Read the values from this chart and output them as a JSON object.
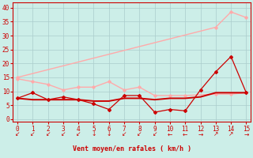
{
  "bg_color": "#cceee8",
  "grid_color": "#aacccc",
  "xlabel": "Vent moyen/en rafales ( km/h )",
  "xlabel_color": "#cc0000",
  "xlim": [
    -0.3,
    15.3
  ],
  "ylim": [
    -1,
    42
  ],
  "yticks": [
    0,
    5,
    10,
    15,
    20,
    25,
    30,
    35,
    40
  ],
  "xticks": [
    0,
    1,
    2,
    3,
    4,
    5,
    6,
    7,
    8,
    9,
    10,
    11,
    12,
    13,
    14,
    15
  ],
  "line_light1": {
    "x": [
      0,
      1,
      2,
      3,
      4,
      5,
      6,
      7,
      8,
      9,
      10,
      11,
      13,
      14,
      15
    ],
    "y": [
      14.5,
      13.5,
      12.5,
      10.5,
      11.5,
      11.5,
      13.5,
      10.5,
      11.5,
      8.5,
      8.5,
      8.5,
      9.0,
      9.0,
      9.5
    ],
    "color": "#ffaaaa",
    "lw": 1.0
  },
  "line_light2": {
    "x": [
      0,
      13,
      14,
      15
    ],
    "y": [
      15.0,
      33.0,
      38.5,
      36.5
    ],
    "color": "#ffaaaa",
    "lw": 1.0
  },
  "line_dark_squiggly": {
    "x": [
      0,
      1,
      2,
      3,
      4,
      5,
      6,
      7,
      8,
      9,
      10,
      11,
      12,
      13,
      14,
      15
    ],
    "y": [
      7.5,
      9.5,
      7.0,
      8.0,
      7.0,
      5.5,
      3.5,
      8.5,
      8.5,
      2.5,
      3.5,
      3.0,
      10.5,
      17.0,
      22.5,
      9.5
    ],
    "color": "#cc0000",
    "lw": 0.9,
    "marker": "D",
    "ms": 2.0
  },
  "line_dark_flat": {
    "x": [
      0,
      1,
      2,
      3,
      4,
      5,
      6,
      7,
      8,
      9,
      10,
      11,
      12,
      13,
      14,
      15
    ],
    "y": [
      7.5,
      7.0,
      7.0,
      7.0,
      7.0,
      6.5,
      6.5,
      7.5,
      7.5,
      7.0,
      7.5,
      7.5,
      8.0,
      9.5,
      9.5,
      9.5
    ],
    "color": "#cc0000",
    "lw": 1.4
  },
  "wind_arrows": {
    "x": [
      0,
      1,
      2,
      3,
      4,
      5,
      6,
      7,
      8,
      9,
      10,
      11,
      12,
      13,
      14,
      15
    ],
    "chars": [
      "↙",
      "↙",
      "↙",
      "↙",
      "↙",
      "↓",
      "↓",
      "↙",
      "↙",
      "↙",
      "←",
      "←",
      "→",
      "↗",
      "↗",
      "→"
    ],
    "color": "#cc0000",
    "fontsize": 5.5
  }
}
